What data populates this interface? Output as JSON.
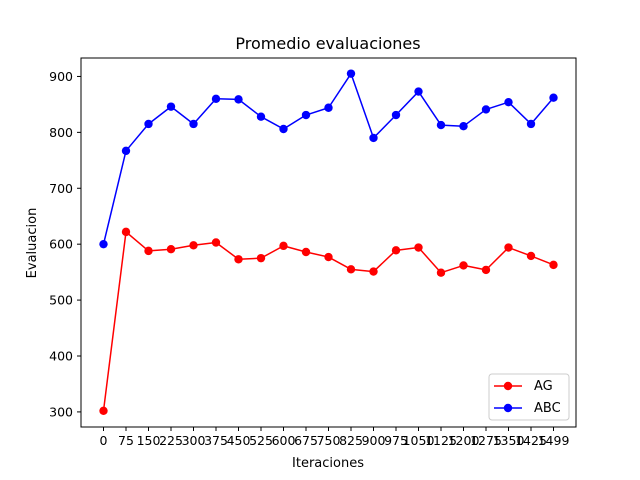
{
  "chart_data": {
    "type": "line",
    "title": "Promedio evaluaciones",
    "xlabel": "Iteraciones",
    "ylabel": "Evaluacion",
    "x": [
      0,
      75,
      150,
      225,
      300,
      375,
      450,
      525,
      600,
      675,
      750,
      825,
      900,
      975,
      1050,
      1125,
      1200,
      1275,
      1350,
      1425,
      1499
    ],
    "x_tick_labels": [
      "0",
      "75",
      "150",
      "225",
      "300",
      "375",
      "450",
      "525",
      "600",
      "675",
      "750",
      "825",
      "900",
      "975",
      "1050",
      "1125",
      "1200",
      "1275",
      "1350",
      "1425",
      "1499"
    ],
    "y_ticks": [
      300,
      400,
      500,
      600,
      700,
      800,
      900
    ],
    "ylim": [
      273,
      933
    ],
    "grid": false,
    "legend_position": "lower-right",
    "series": [
      {
        "name": "AG",
        "color": "#ff0000",
        "marker": "circle",
        "values": [
          302,
          622,
          588,
          591,
          598,
          603,
          573,
          575,
          597,
          586,
          577,
          555,
          551,
          589,
          594,
          549,
          562,
          554,
          594,
          579,
          563
        ]
      },
      {
        "name": "ABC",
        "color": "#0000ff",
        "marker": "circle",
        "values": [
          600,
          767,
          815,
          846,
          815,
          860,
          859,
          828,
          806,
          831,
          844,
          905,
          790,
          831,
          873,
          813,
          811,
          841,
          854,
          815,
          862
        ]
      }
    ]
  }
}
